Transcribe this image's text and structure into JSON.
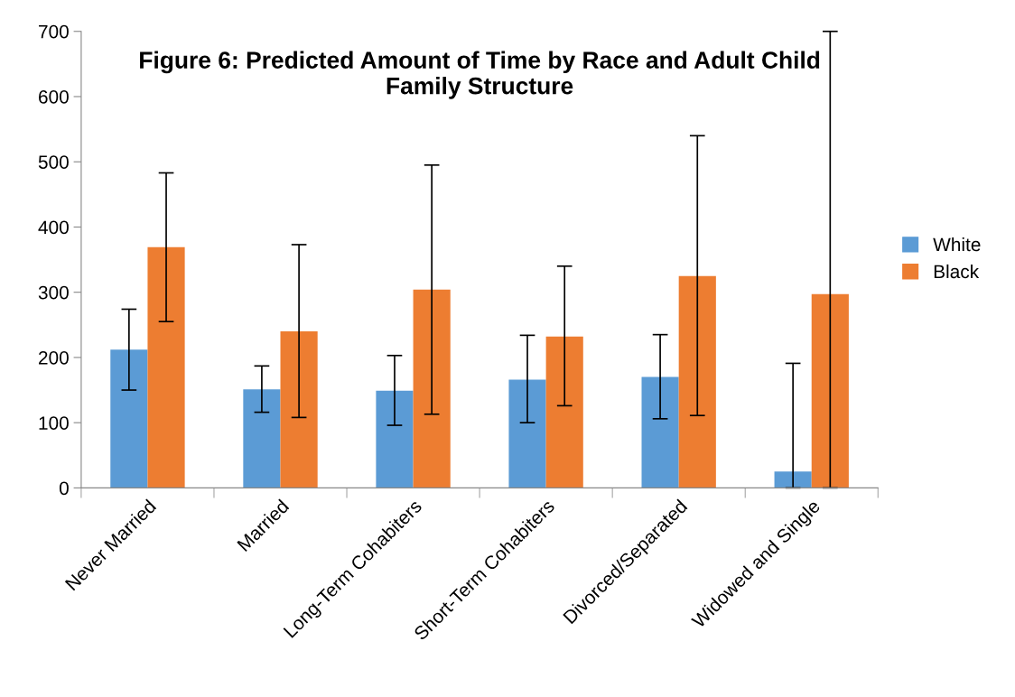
{
  "chart_data": {
    "type": "bar",
    "title": "Figure 6: Predicted Amount of Time by Race and Adult Child\nFamily Structure",
    "categories": [
      "Never Married",
      "Married",
      "Long-Term Cohabiters",
      "Short-Term Cohabiters",
      "Divorced/Separated",
      "Widowed and Single"
    ],
    "series": [
      {
        "name": "White",
        "color": "#5b9bd5",
        "values": [
          212,
          151,
          149,
          166,
          170,
          25
        ],
        "errors": [
          [
            150,
            274
          ],
          [
            116,
            187
          ],
          [
            96,
            203
          ],
          [
            100,
            234
          ],
          [
            106,
            235
          ],
          [
            0,
            191
          ]
        ]
      },
      {
        "name": "Black",
        "color": "#ed7d31",
        "values": [
          369,
          240,
          304,
          232,
          325,
          297
        ],
        "errors": [
          [
            255,
            483
          ],
          [
            108,
            373
          ],
          [
            113,
            495
          ],
          [
            126,
            340
          ],
          [
            111,
            540
          ],
          [
            0,
            700
          ]
        ]
      }
    ],
    "ylim": [
      0,
      700
    ],
    "yticks": [
      0,
      100,
      200,
      300,
      400,
      500,
      600,
      700
    ],
    "grid": false,
    "legend": "right"
  }
}
